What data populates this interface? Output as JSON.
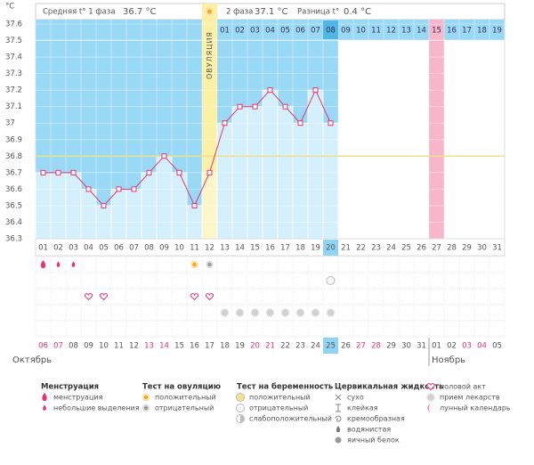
{
  "chart_data": {
    "type": "line",
    "y_unit": "°C",
    "header": {
      "phase1_label": "Средняя t° 1 фаза",
      "phase1_value": "36.7 °C",
      "phase2_label": "2 фаза",
      "phase2_value": "37.1 °C",
      "diff_label": "Разница t°",
      "diff_value": "0.4 °C"
    },
    "ovulation_label": "ОВУЛЯЦИЯ",
    "ovulation_index": 11,
    "marked_index": 26,
    "selected_index": 19,
    "categories": [
      "01",
      "02",
      "03",
      "04",
      "05",
      "06",
      "07",
      "08",
      "09",
      "10",
      "11",
      "12",
      "13",
      "14",
      "15",
      "16",
      "17",
      "18",
      "19",
      "20",
      "21",
      "22",
      "23",
      "24",
      "25",
      "26",
      "27",
      "28",
      "29",
      "30",
      "31"
    ],
    "cycle_days": [
      null,
      null,
      null,
      null,
      null,
      null,
      null,
      null,
      null,
      null,
      null,
      null,
      "01",
      "02",
      "03",
      "04",
      "05",
      "06",
      "07",
      "08",
      "09",
      "10",
      "11",
      "12",
      "13",
      "14",
      "15",
      "16",
      "17",
      "18",
      "19"
    ],
    "values": [
      36.7,
      36.7,
      36.7,
      36.6,
      36.5,
      36.6,
      36.6,
      36.7,
      36.8,
      36.7,
      36.5,
      36.7,
      37.0,
      37.1,
      37.1,
      37.2,
      37.1,
      37.0,
      37.2,
      37.0,
      null,
      null,
      null,
      null,
      null,
      null,
      null,
      null,
      null,
      null,
      null
    ],
    "color": "#e8336f",
    "coverline": 36.8,
    "ylim": [
      36.3,
      37.6
    ],
    "yticks": [
      36.3,
      36.4,
      36.5,
      36.6,
      36.7,
      36.8,
      36.9,
      37,
      37.1,
      37.2,
      37.3,
      37.4,
      37.5,
      37.6
    ],
    "grid": true,
    "dates": [
      "06",
      "07",
      "08",
      "09",
      "10",
      "11",
      "12",
      "13",
      "14",
      "15",
      "16",
      "17",
      "18",
      "19",
      "20",
      "21",
      "22",
      "23",
      "24",
      "25",
      "26",
      "27",
      "28",
      "29",
      "30",
      "31",
      "01",
      "02",
      "03",
      "04",
      "05"
    ],
    "date_colors": [
      "#e8336f",
      "#e8336f",
      "#555",
      "#555",
      "#555",
      "#555",
      "#555",
      "#e8336f",
      "#e8336f",
      "#555",
      "#555",
      "#555",
      "#555",
      "#555",
      "#e8336f",
      "#e8336f",
      "#555",
      "#555",
      "#555",
      "#555",
      "#555",
      "#e8336f",
      "#e8336f",
      "#555",
      "#555",
      "#555",
      "#555",
      "#555",
      "#e8336f",
      "#e8336f",
      "#555"
    ],
    "months": [
      "Октябрь",
      null,
      null,
      null,
      null,
      null,
      null,
      null,
      null,
      null,
      null,
      null,
      null,
      null,
      null,
      null,
      null,
      null,
      null,
      null,
      null,
      null,
      null,
      null,
      null,
      null,
      "Ноябрь",
      null,
      null,
      null,
      null
    ],
    "legend": [
      {
        "title": "Менструация",
        "items": [
          {
            "label": "менструация",
            "days": [
              0
            ]
          },
          {
            "label": "небольшие выделения",
            "days": [
              1,
              2
            ]
          }
        ]
      },
      {
        "title": "Тест на овуляцию",
        "items": [
          {
            "label": "положительный",
            "days": [
              10
            ]
          },
          {
            "label": "отрицательный",
            "days": [
              11
            ]
          }
        ]
      },
      {
        "title": "Тест на беременность",
        "items": [
          {
            "label": "положительный",
            "days": []
          },
          {
            "label": "отрицательный",
            "days": [
              19
            ]
          },
          {
            "label": "слабоположительный",
            "days": []
          }
        ]
      },
      {
        "title": "Цервикальная жидкость",
        "items": [
          {
            "label": "сухо",
            "days": []
          },
          {
            "label": "клейкая",
            "days": []
          },
          {
            "label": "кремообразная",
            "days": []
          },
          {
            "label": "водянистая",
            "days": []
          },
          {
            "label": "яичный белок",
            "days": []
          }
        ]
      },
      {
        "items": [
          {
            "label": "половой акт",
            "days": [
              3,
              4,
              10,
              11
            ]
          },
          {
            "label": "прием лекарств",
            "days": [
              12,
              13,
              14,
              15,
              16,
              17,
              18,
              19
            ]
          },
          {
            "label": "лунный календарь",
            "days": []
          }
        ]
      }
    ]
  }
}
